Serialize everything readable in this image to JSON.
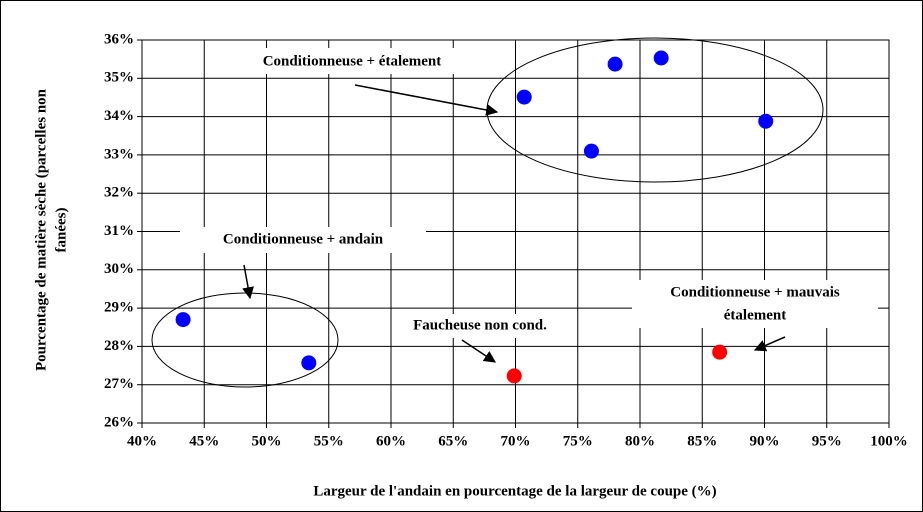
{
  "chart_data": {
    "type": "scatter",
    "x_label": "Largeur de l'andain en pourcentage de la largeur de coupe (%)",
    "y_label": [
      "Pourcentage de matière sèche (parcelles non",
      "fanées)"
    ],
    "series": [
      {
        "color": "#0000ff",
        "x": [
          43.3,
          53.4,
          70.7,
          76.1,
          78.0,
          81.7,
          90.1
        ],
        "values": [
          28.7,
          27.57,
          34.51,
          33.1,
          35.37,
          35.53,
          33.88
        ]
      },
      {
        "color": "#ff0000",
        "x": [
          69.9,
          86.4
        ],
        "values": [
          27.23,
          27.85
        ]
      }
    ],
    "xlim": [
      40,
      100
    ],
    "xticks": [
      {
        "value": 40,
        "label": "40%"
      },
      {
        "value": 45,
        "label": "45%"
      },
      {
        "value": 50,
        "label": "50%"
      },
      {
        "value": 55,
        "label": "55%"
      },
      {
        "value": 60,
        "label": "60%"
      },
      {
        "value": 65,
        "label": "65%"
      },
      {
        "value": 70,
        "label": "70%"
      },
      {
        "value": 75,
        "label": "75%"
      },
      {
        "value": 80,
        "label": "80%"
      },
      {
        "value": 85,
        "label": "85%"
      },
      {
        "value": 90,
        "label": "90%"
      },
      {
        "value": 95,
        "label": "95%"
      },
      {
        "value": 100,
        "label": "100%"
      }
    ],
    "ylim": [
      26,
      36
    ],
    "yticks": [
      {
        "value": 26,
        "label": "26%"
      },
      {
        "value": 27,
        "label": "27%"
      },
      {
        "value": 28,
        "label": "28%"
      },
      {
        "value": 29,
        "label": "29%"
      },
      {
        "value": 30,
        "label": "30%"
      },
      {
        "value": 31,
        "label": "31%"
      },
      {
        "value": 32,
        "label": "32%"
      },
      {
        "value": 33,
        "label": "33%"
      },
      {
        "value": 34,
        "label": "34%"
      },
      {
        "value": 35,
        "label": "35%"
      },
      {
        "value": 36,
        "label": "36%"
      }
    ],
    "grid": true,
    "annotations": [
      {
        "lines": [
          "Conditionneuse + étalement"
        ]
      },
      {
        "lines": [
          "Conditionneuse + andain"
        ]
      },
      {
        "lines": [
          "Faucheuse non cond."
        ]
      },
      {
        "lines": [
          "Conditionneuse + mauvais",
          "étalement"
        ]
      }
    ]
  }
}
